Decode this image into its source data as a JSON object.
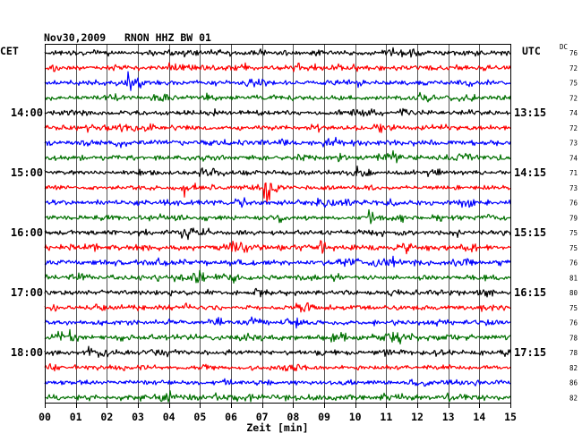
{
  "chart_data": {
    "type": "line",
    "title": "Nov30,2009   RNON HHZ BW 01",
    "xlabel": "Zeit [min]",
    "xlim": [
      0,
      15
    ],
    "x_ticks": [
      "00",
      "01",
      "02",
      "03",
      "04",
      "05",
      "06",
      "07",
      "08",
      "09",
      "10",
      "11",
      "12",
      "13",
      "14",
      "15"
    ],
    "grid": true,
    "left_timezone": "CET",
    "right_timezone": "UTC",
    "left_hour_labels": [
      "14:00",
      "15:00",
      "16:00",
      "17:00",
      "18:00"
    ],
    "right_hour_labels": [
      "13:15",
      "14:15",
      "15:15",
      "16:15",
      "17:15"
    ],
    "dc_header": "DC",
    "traces": [
      {
        "color": "black",
        "dc": 76
      },
      {
        "color": "red",
        "dc": 72
      },
      {
        "color": "blue",
        "dc": 75
      },
      {
        "color": "green",
        "dc": 72
      },
      {
        "color": "black",
        "dc": 74
      },
      {
        "color": "red",
        "dc": 72
      },
      {
        "color": "blue",
        "dc": 73
      },
      {
        "color": "green",
        "dc": 74
      },
      {
        "color": "black",
        "dc": 71
      },
      {
        "color": "red",
        "dc": 73
      },
      {
        "color": "blue",
        "dc": 76
      },
      {
        "color": "green",
        "dc": 79
      },
      {
        "color": "black",
        "dc": 75
      },
      {
        "color": "red",
        "dc": 75
      },
      {
        "color": "blue",
        "dc": 76
      },
      {
        "color": "green",
        "dc": 81
      },
      {
        "color": "black",
        "dc": 80
      },
      {
        "color": "red",
        "dc": 75
      },
      {
        "color": "blue",
        "dc": 76
      },
      {
        "color": "green",
        "dc": 78
      },
      {
        "color": "black",
        "dc": 78
      },
      {
        "color": "red",
        "dc": 82
      },
      {
        "color": "blue",
        "dc": 86
      },
      {
        "color": "green",
        "dc": 82
      }
    ],
    "events": [
      {
        "trace": 0,
        "minute": 4.0,
        "relative_amplitude": 3
      },
      {
        "trace": 1,
        "minute": 0.25,
        "relative_amplitude": 3
      },
      {
        "trace": 1,
        "minute": 5.1,
        "relative_amplitude": 1.5
      },
      {
        "trace": 11,
        "minute": 10.45,
        "relative_amplitude": 4.5
      },
      {
        "trace": 13,
        "minute": 8.9,
        "relative_amplitude": 6
      },
      {
        "trace": 15,
        "minute": 9.45,
        "relative_amplitude": 1.8
      },
      {
        "trace": 17,
        "minute": 0.3,
        "relative_amplitude": 2
      }
    ]
  },
  "colors": {
    "black": "#000000",
    "red": "#ff0000",
    "blue": "#0000ff",
    "green": "#007000",
    "grid": "#555555",
    "axis": "#000000"
  }
}
